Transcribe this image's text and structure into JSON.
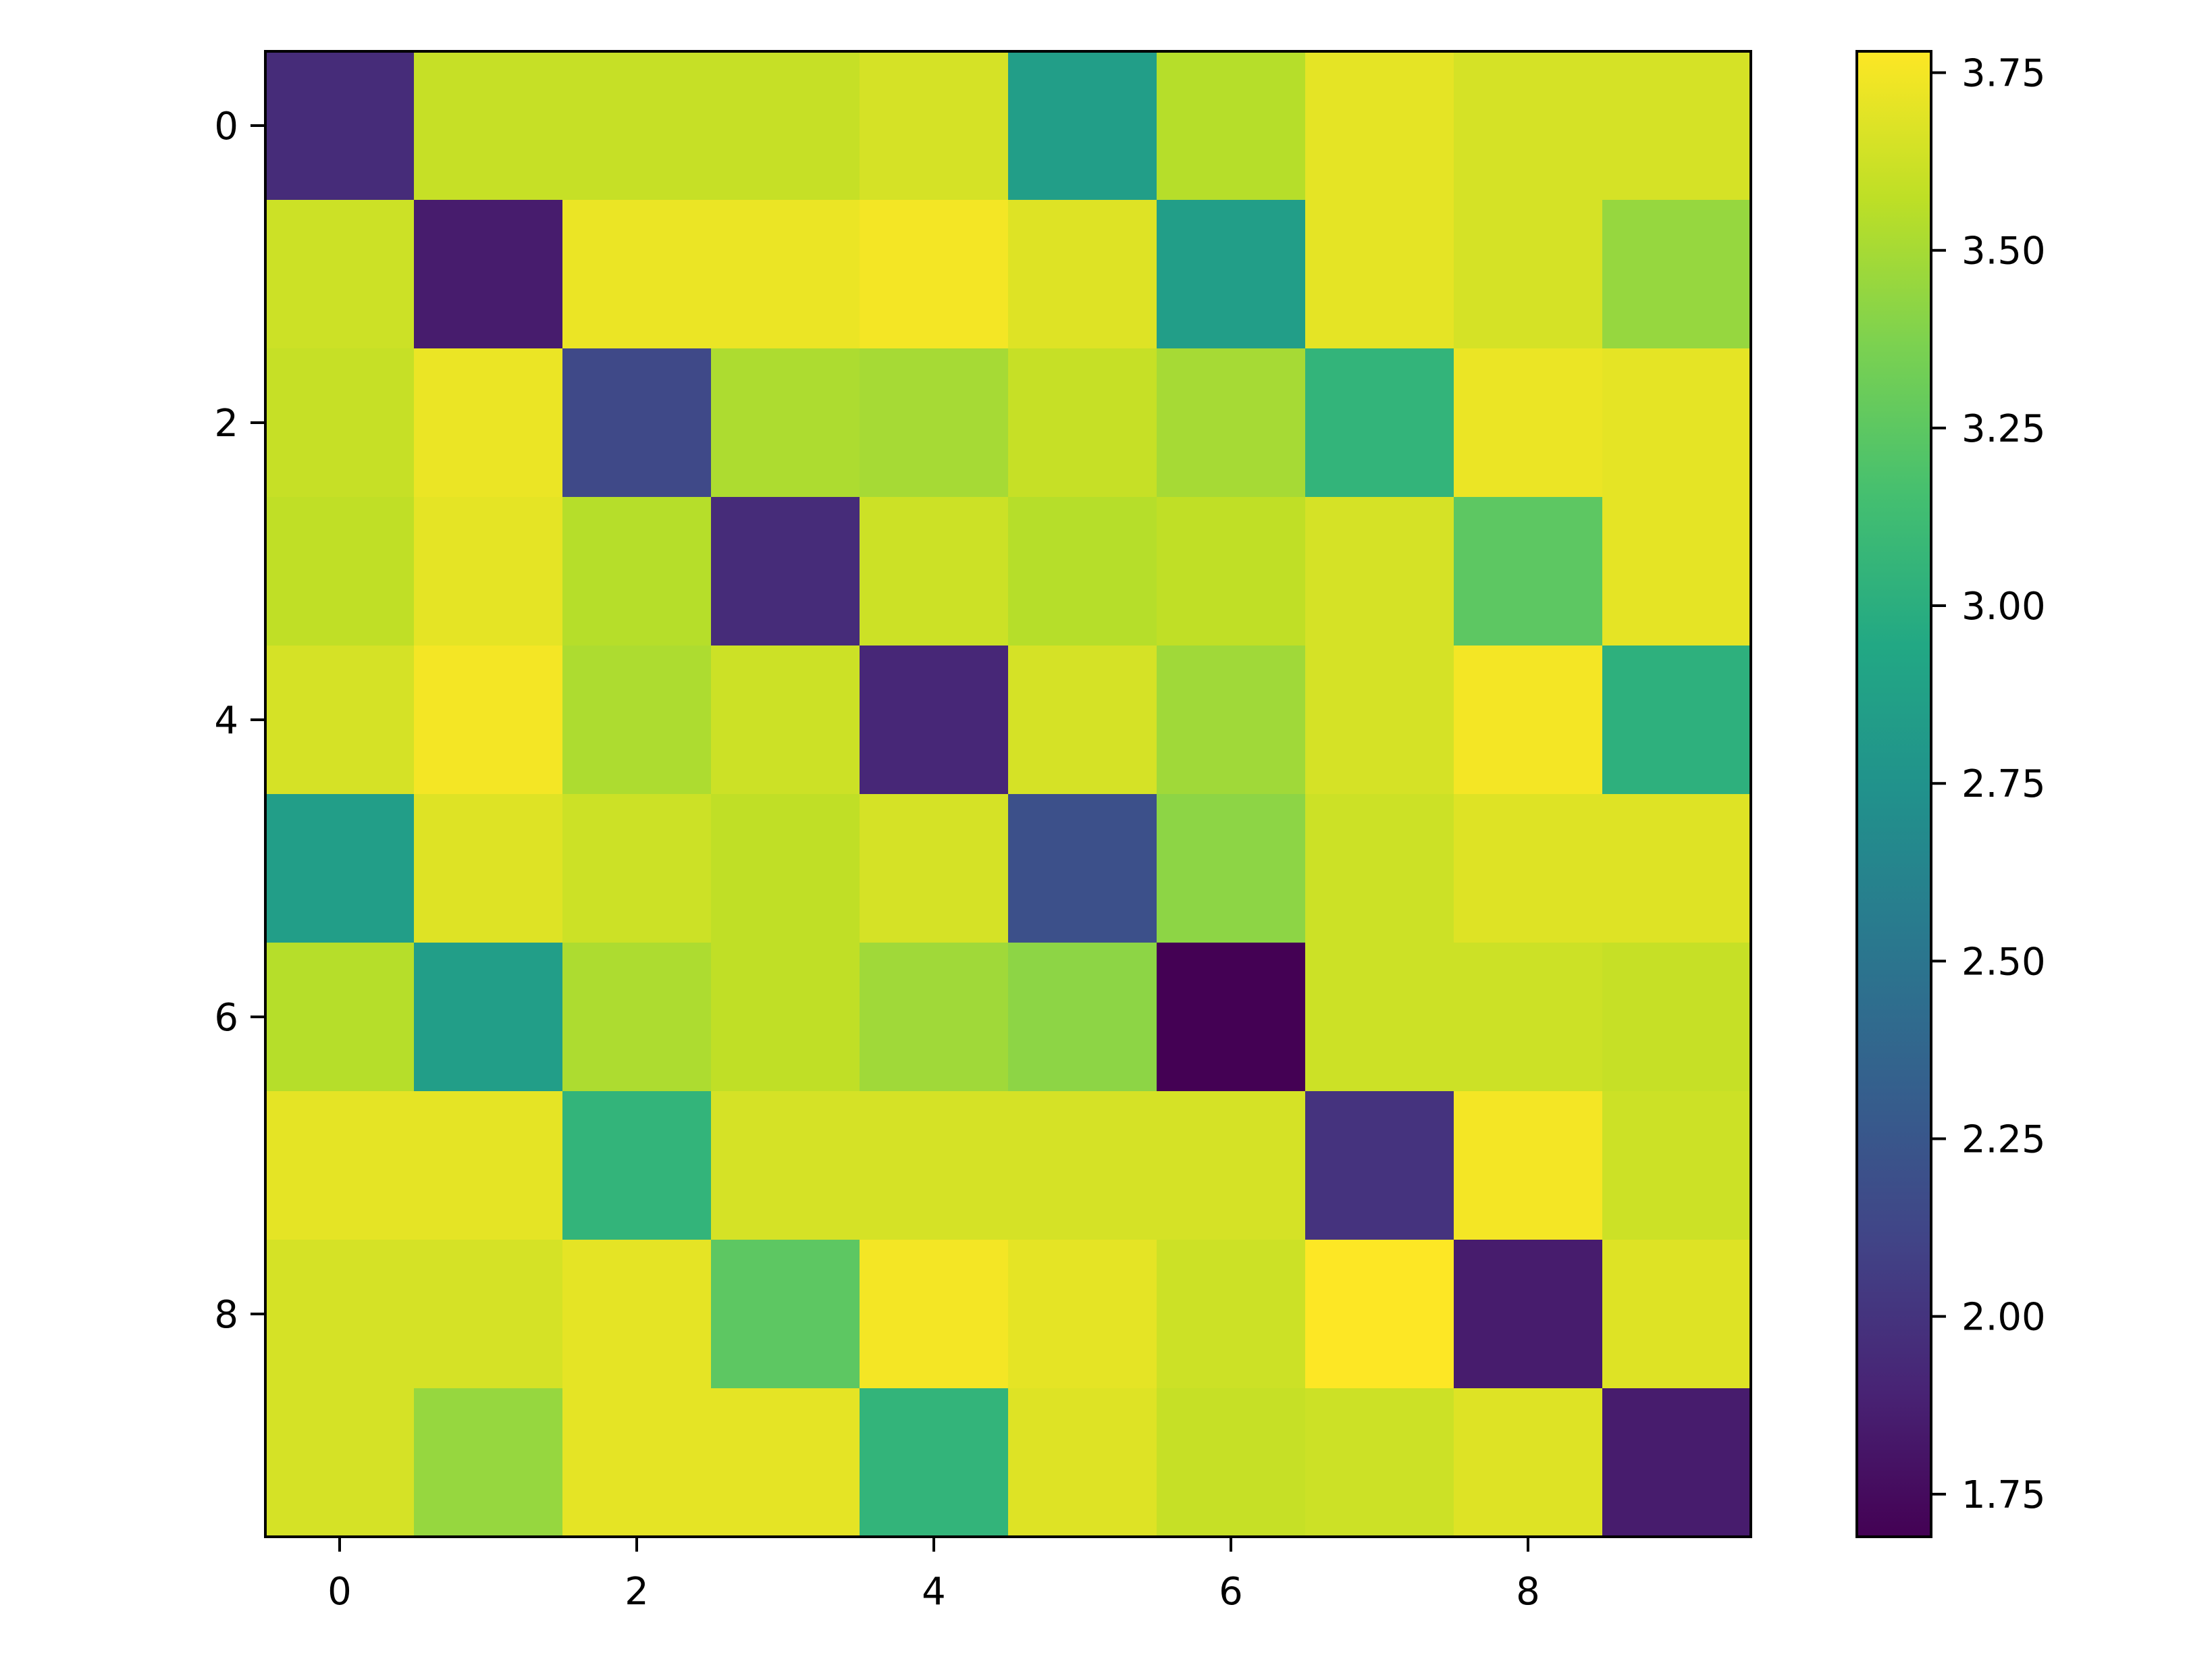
{
  "chart_data": {
    "type": "heatmap",
    "title": "",
    "xlabel": "",
    "ylabel": "",
    "colormap": "viridis",
    "rows": 10,
    "cols": 10,
    "xticks": [
      0,
      2,
      4,
      6,
      8
    ],
    "yticks": [
      0,
      2,
      4,
      6,
      8
    ],
    "colorbar": {
      "vmin": 1.69,
      "vmax": 3.78,
      "ticks": [
        1.75,
        2.0,
        2.25,
        2.5,
        2.75,
        3.0,
        3.25,
        3.5,
        3.75
      ],
      "tick_labels": [
        "1.75",
        "2.00",
        "2.25",
        "2.50",
        "2.75",
        "3.00",
        "3.25",
        "3.50",
        "3.75"
      ],
      "placement": "right"
    },
    "values": [
      [
        1.95,
        3.6,
        3.6,
        3.6,
        3.65,
        2.85,
        3.55,
        3.7,
        3.65,
        3.65
      ],
      [
        3.62,
        1.85,
        3.72,
        3.72,
        3.75,
        3.68,
        2.85,
        3.7,
        3.65,
        3.45
      ],
      [
        3.6,
        3.72,
        2.15,
        3.52,
        3.5,
        3.6,
        3.5,
        3.05,
        3.72,
        3.7
      ],
      [
        3.58,
        3.7,
        3.55,
        1.95,
        3.62,
        3.55,
        3.58,
        3.65,
        3.25,
        3.7
      ],
      [
        3.65,
        3.75,
        3.52,
        3.62,
        1.92,
        3.65,
        3.48,
        3.65,
        3.75,
        3.02
      ],
      [
        2.85,
        3.68,
        3.62,
        3.58,
        3.65,
        2.2,
        3.42,
        3.62,
        3.68,
        3.68
      ],
      [
        3.55,
        2.85,
        3.52,
        3.58,
        3.48,
        3.42,
        1.69,
        3.62,
        3.62,
        3.6
      ],
      [
        3.7,
        3.7,
        3.05,
        3.65,
        3.65,
        3.65,
        3.65,
        2.0,
        3.75,
        3.62
      ],
      [
        3.65,
        3.65,
        3.7,
        3.25,
        3.75,
        3.7,
        3.62,
        3.78,
        1.85,
        3.68
      ],
      [
        3.65,
        3.45,
        3.7,
        3.7,
        3.05,
        3.68,
        3.6,
        3.62,
        3.68,
        1.85
      ]
    ]
  }
}
